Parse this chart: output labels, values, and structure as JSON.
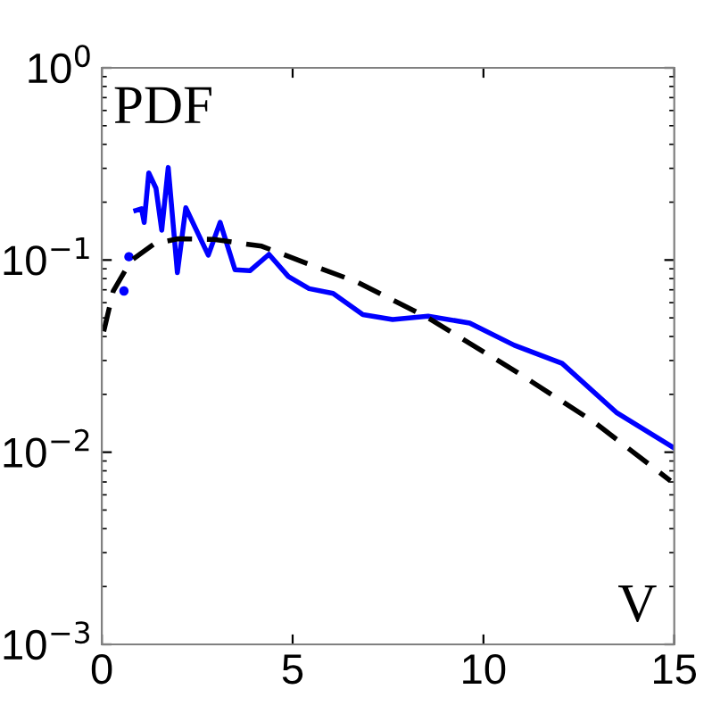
{
  "chart_data": {
    "type": "line",
    "xlabel": "V",
    "ylabel": "PDF",
    "log": "y",
    "xlim": [
      0,
      15
    ],
    "xticks": [
      0,
      5,
      10,
      15
    ],
    "ylim": [
      0.001,
      1
    ],
    "yticks": [
      {
        "value": 0.001,
        "label": "10$^{−3}$"
      },
      {
        "value": 0.01,
        "label": "10$^{−2}$"
      },
      {
        "value": 0.1,
        "label": "10$^{−1}$"
      },
      {
        "value": 1,
        "label": "10$^{0}$"
      }
    ],
    "grid": false,
    "series": [
      {
        "color": "#0000ff",
        "line_style": "solid",
        "x": [
          0.89,
          1.04,
          1.11,
          1.23,
          1.42,
          1.57,
          1.74,
          1.98,
          2.2,
          2.79,
          3.1,
          3.49,
          3.88,
          4.38,
          4.89,
          5.43,
          6.06,
          6.84,
          7.62,
          8.55,
          9.64,
          10.81,
          12.06,
          13.5,
          15
        ],
        "values": [
          0.181,
          0.185,
          0.157,
          0.284,
          0.236,
          0.143,
          0.303,
          0.086,
          0.187,
          0.106,
          0.157,
          0.089,
          0.088,
          0.107,
          0.082,
          0.071,
          0.067,
          0.052,
          0.049,
          0.051,
          0.047,
          0.036,
          0.029,
          0.016,
          0.0105
        ]
      },
      {
        "type": "scatter",
        "color": "#0000ff",
        "marker": "circle",
        "x": [
          0.58,
          0.71
        ],
        "values": [
          0.069,
          0.104
        ]
      },
      {
        "color": "#000000",
        "line_style": "dashed",
        "x": [
          0.05,
          0.3,
          0.76,
          1.39,
          2.0,
          2.94,
          4.19,
          5.43,
          6.68,
          8.55,
          10.89,
          12.91,
          14.9
        ],
        "values": [
          0.0425,
          0.069,
          0.099,
          0.122,
          0.129,
          0.128,
          0.118,
          0.095,
          0.077,
          0.05,
          0.026,
          0.0143,
          0.0071
        ]
      }
    ]
  }
}
